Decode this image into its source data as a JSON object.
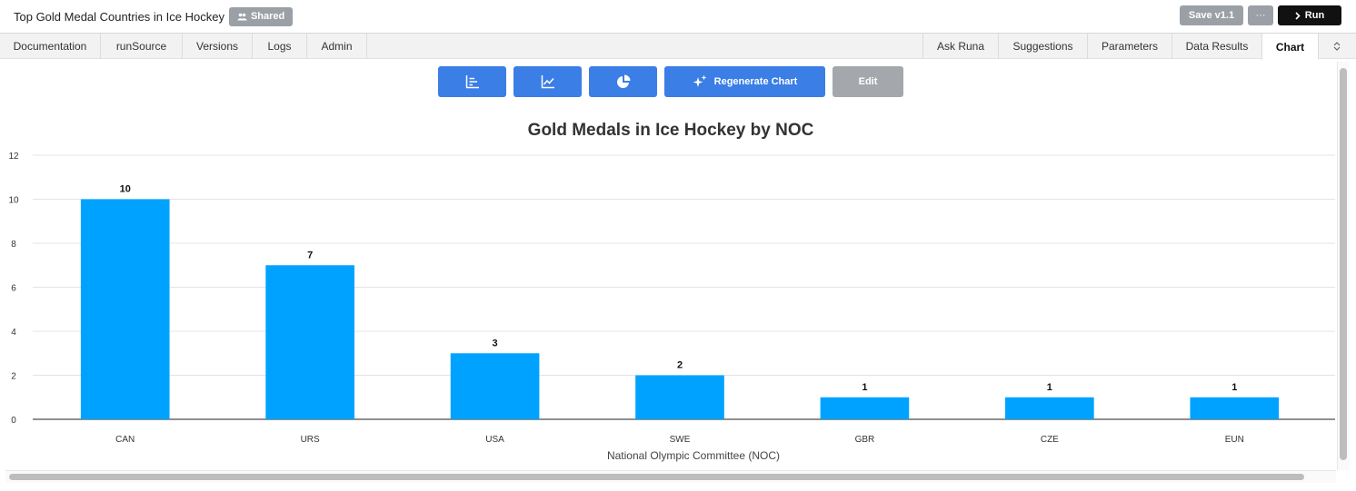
{
  "header": {
    "title": "Top Gold Medal Countries in Ice Hockey",
    "shared_label": "Shared",
    "save_label": "Save v1.1",
    "more_label": "···",
    "run_label": "Run"
  },
  "tabs_left": [
    {
      "label": "Documentation"
    },
    {
      "label": "runSource"
    },
    {
      "label": "Versions"
    },
    {
      "label": "Logs"
    },
    {
      "label": "Admin"
    }
  ],
  "tabs_right": [
    {
      "label": "Ask Runa"
    },
    {
      "label": "Suggestions"
    },
    {
      "label": "Parameters"
    },
    {
      "label": "Data Results"
    },
    {
      "label": "Chart",
      "active": true
    }
  ],
  "toolbar": {
    "regenerate_label": "Regenerate Chart",
    "edit_label": "Edit",
    "icons": [
      "bar-chart-icon",
      "line-chart-icon",
      "pie-chart-icon",
      "sparkle-icon"
    ]
  },
  "colors": {
    "bar": "#00a2ff",
    "primary_button": "#3a7ee6",
    "disabled_button": "#a4a8ad"
  },
  "chart_data": {
    "type": "bar",
    "title": "Gold Medals in Ice Hockey by NOC",
    "xlabel": "National Olympic Committee (NOC)",
    "ylabel": "",
    "categories": [
      "CAN",
      "URS",
      "USA",
      "SWE",
      "GBR",
      "CZE",
      "EUN"
    ],
    "values": [
      10,
      7,
      3,
      2,
      1,
      1,
      1
    ],
    "ylim": [
      0,
      12
    ],
    "yticks": [
      0,
      2,
      4,
      6,
      8,
      10,
      12
    ],
    "grid": true,
    "legend": "none",
    "data_labels": true
  }
}
